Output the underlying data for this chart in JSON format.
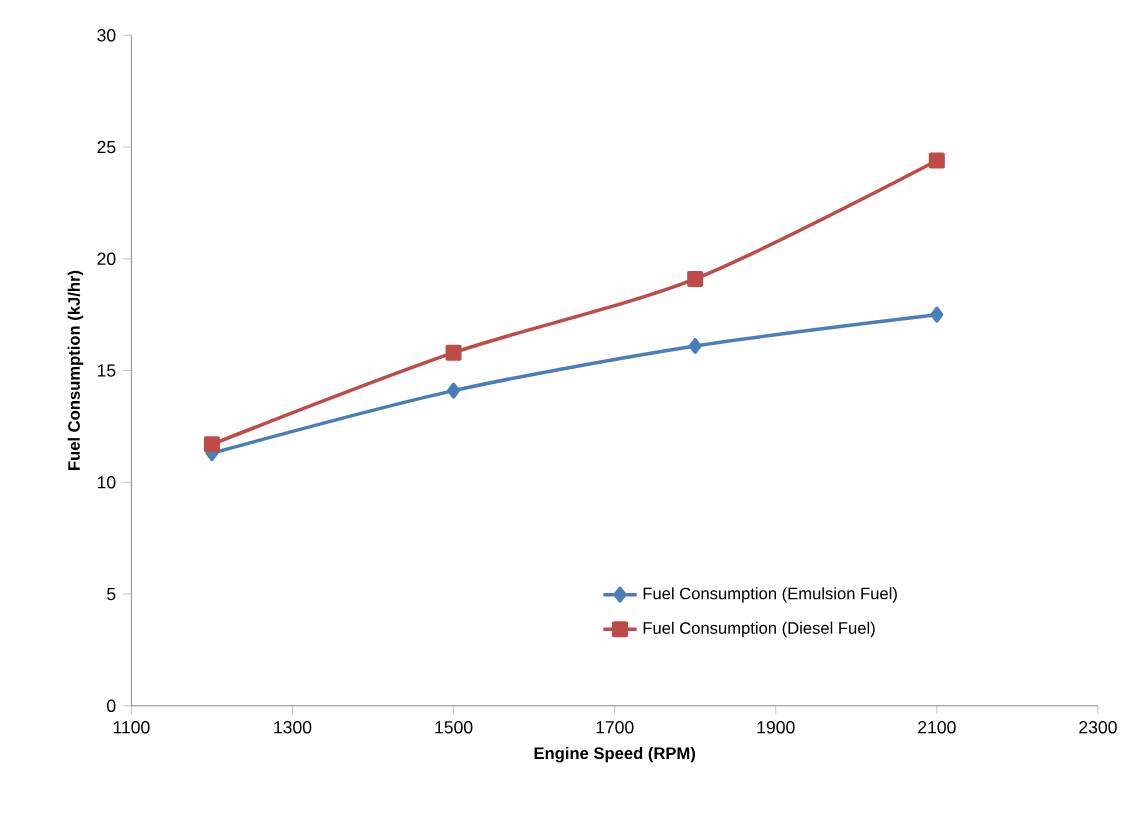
{
  "chart_data": {
    "type": "line",
    "xlabel": "Engine Speed (RPM)",
    "ylabel": "Fuel Consumption (kJ/hr)",
    "x": [
      1200,
      1500,
      1800,
      2100
    ],
    "series": [
      {
        "name": "Fuel Consumption  (Emulsion Fuel)",
        "color": "#4a7ebb",
        "marker": "diamond",
        "values": [
          11.3,
          14.1,
          16.1,
          17.5
        ]
      },
      {
        "name": "Fuel Consumption  (Diesel Fuel)",
        "color": "#be4b48",
        "marker": "square",
        "values": [
          11.7,
          15.8,
          19.1,
          24.4
        ]
      }
    ],
    "xlim": [
      1100,
      2300
    ],
    "xticks": [
      1100,
      1300,
      1500,
      1700,
      1900,
      2100,
      2300
    ],
    "ylim": [
      0,
      30
    ],
    "yticks": [
      0,
      5,
      10,
      15,
      20,
      25,
      30
    ],
    "grid": false,
    "legend": "bottom right",
    "line_style": "solid"
  }
}
